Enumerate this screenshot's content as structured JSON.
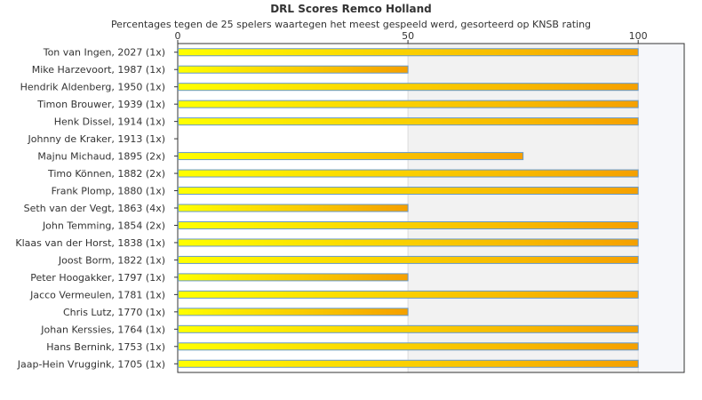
{
  "chart_data": {
    "type": "bar",
    "orientation": "horizontal",
    "title": "DRL Scores Remco Holland",
    "subtitle": "Percentages tegen de 25 spelers waartegen het meest gespeeld werd, gesorteerd op KNSB rating",
    "xlabel": "",
    "ylabel": "",
    "xlim": [
      0,
      110
    ],
    "x_ticks": [
      0,
      50,
      100
    ],
    "grid": true,
    "legend": "none",
    "colors": {
      "bar_start": "#ffff00",
      "bar_end": "#f5a000",
      "bar_border": "#6699cc",
      "band_light": "#ffffff",
      "band_shade": "#f2f2f2",
      "band_far": "#f6f7fa"
    },
    "categories": [
      "Ton van Ingen, 2027 (1x)",
      "Mike Harzevoort, 1987 (1x)",
      "Hendrik Aldenberg, 1950 (1x)",
      "Timon Brouwer, 1939 (1x)",
      "Henk Dissel, 1914 (1x)",
      "Johnny de Kraker, 1913 (1x)",
      "Majnu Michaud, 1895 (2x)",
      "Timo Können, 1882 (2x)",
      "Frank Plomp, 1880 (1x)",
      "Seth van der Vegt, 1863 (4x)",
      "John Temming, 1854 (2x)",
      "Klaas van der Horst, 1838 (1x)",
      "Joost Borm, 1822 (1x)",
      "Peter Hoogakker, 1797 (1x)",
      "Jacco Vermeulen, 1781 (1x)",
      "Chris Lutz, 1770 (1x)",
      "Johan Kerssies, 1764 (1x)",
      "Hans Bernink, 1753 (1x)",
      "Jaap-Hein Vruggink, 1705 (1x)"
    ],
    "values": [
      100,
      50,
      100,
      100,
      100,
      0,
      75,
      100,
      100,
      50,
      100,
      100,
      100,
      50,
      100,
      50,
      100,
      100,
      100
    ]
  }
}
